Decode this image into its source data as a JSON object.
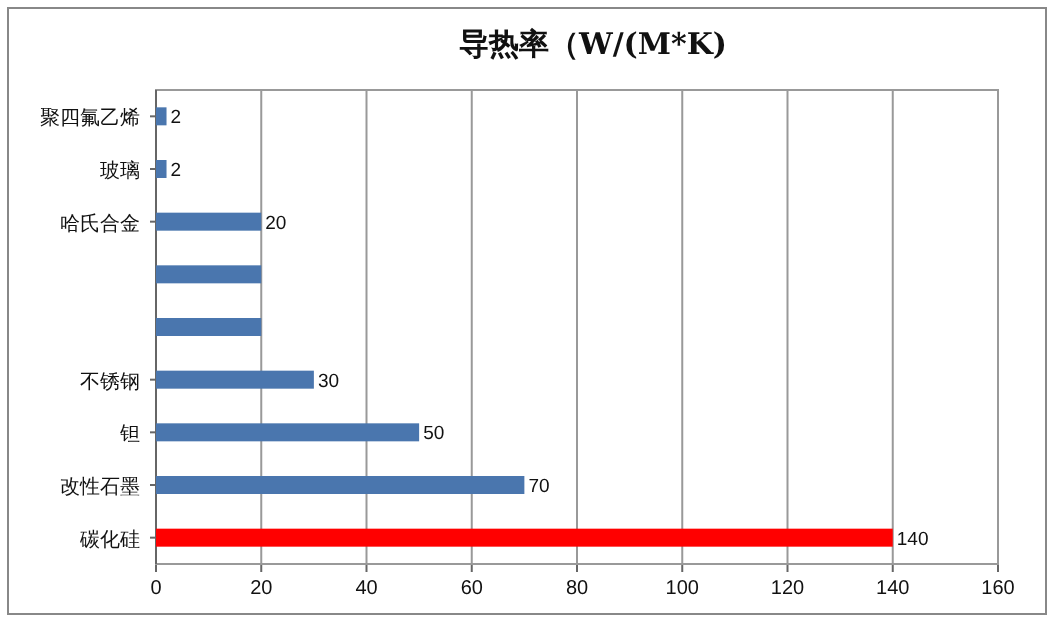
{
  "chart_data": {
    "type": "bar",
    "orientation": "horizontal",
    "title": "导热率（W/(M*K)",
    "categories": [
      "聚四氟乙烯",
      "玻璃",
      "哈氏合金",
      null,
      null,
      "不锈钢",
      "钽",
      "改性石墨",
      "碳化硅"
    ],
    "values": [
      2,
      2,
      20,
      20,
      20,
      30,
      50,
      70,
      140
    ],
    "colors": [
      "#4a76ae",
      "#4a76ae",
      "#4a76ae",
      "#4a76ae",
      "#4a76ae",
      "#4a76ae",
      "#4a76ae",
      "#4a76ae",
      "#ff0000"
    ],
    "value_labels": [
      "2",
      "2",
      "20",
      null,
      null,
      "30",
      "50",
      "70",
      "140"
    ],
    "xlim": [
      0,
      160
    ],
    "xticks": [
      0,
      20,
      40,
      60,
      80,
      100,
      120,
      140,
      160
    ],
    "grid": "x"
  }
}
